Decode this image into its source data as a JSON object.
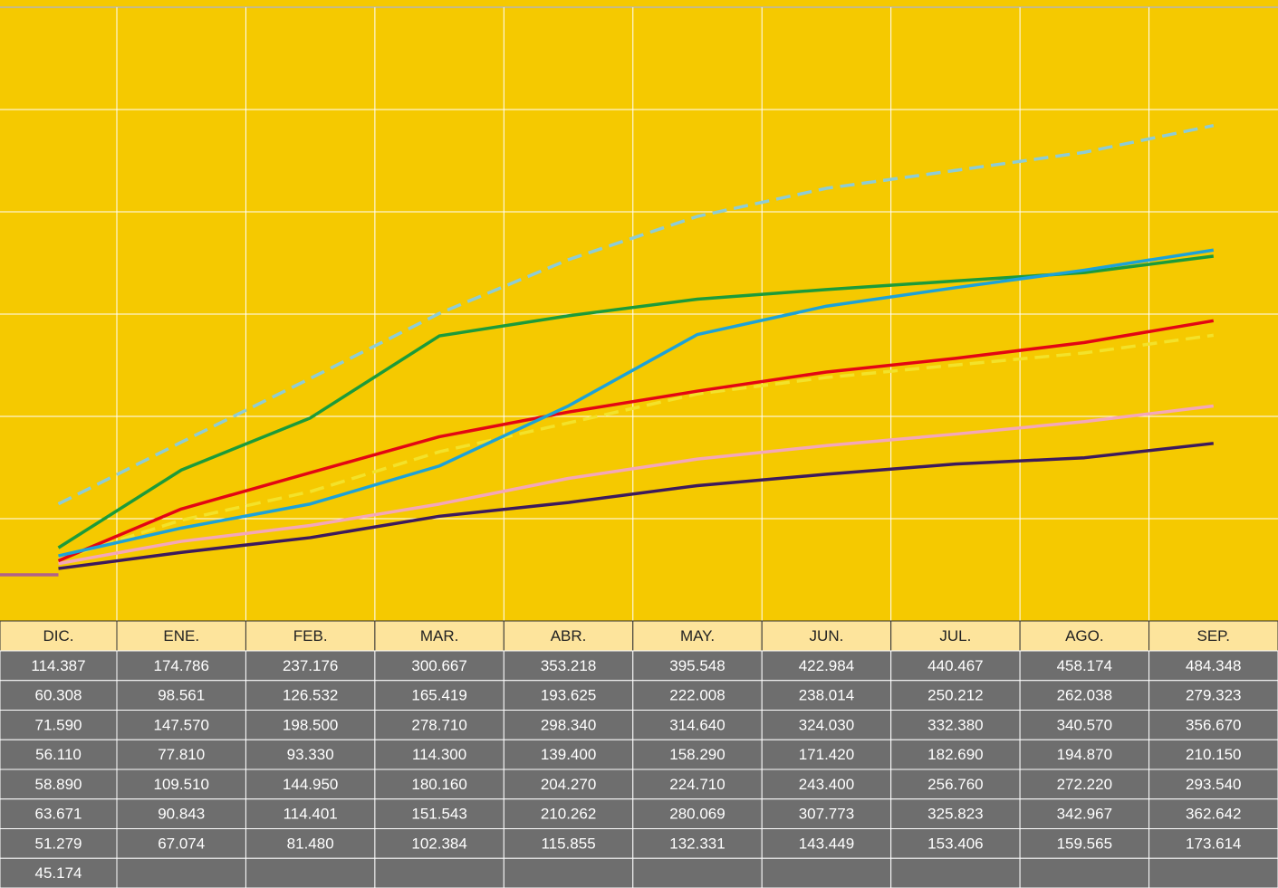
{
  "chart_data": {
    "type": "line",
    "categories": [
      "DIC.",
      "ENE.",
      "FEB.",
      "MAR.",
      "ABR.",
      "MAY.",
      "JUN.",
      "JUL.",
      "AGO.",
      "SEP."
    ],
    "ylim": [
      0,
      600000
    ],
    "yticks": [
      0,
      100000,
      200000,
      300000,
      400000,
      500000,
      600000
    ],
    "grid": true,
    "series": [
      {
        "color": "#8dccd6",
        "dash": true,
        "values": [
          114387,
          174786,
          237176,
          300667,
          353218,
          395548,
          422984,
          440467,
          458174,
          484348
        ],
        "value_labels": [
          "114.387",
          "174.786",
          "237.176",
          "300.667",
          "353.218",
          "395.548",
          "422.984",
          "440.467",
          "458.174",
          "484.348"
        ]
      },
      {
        "color": "#f3e22a",
        "dash": true,
        "values": [
          60308,
          98561,
          126532,
          165419,
          193625,
          222008,
          238014,
          250212,
          262038,
          279323
        ],
        "value_labels": [
          "60.308",
          "98.561",
          "126.532",
          "165.419",
          "193.625",
          "222.008",
          "238.014",
          "250.212",
          "262.038",
          "279.323"
        ]
      },
      {
        "color": "#1c9b3a",
        "dash": false,
        "values": [
          71590,
          147570,
          198500,
          278710,
          298340,
          314640,
          324030,
          332380,
          340570,
          356670
        ],
        "value_labels": [
          "71.590",
          "147.570",
          "198.500",
          "278.710",
          "298.340",
          "314.640",
          "324.030",
          "332.380",
          "340.570",
          "356.670"
        ]
      },
      {
        "color": "#f4a7b9",
        "dash": false,
        "values": [
          56110,
          77810,
          93330,
          114300,
          139400,
          158290,
          171420,
          182690,
          194870,
          210150
        ],
        "value_labels": [
          "56.110",
          "77.810",
          "93.330",
          "114.300",
          "139.400",
          "158.290",
          "171.420",
          "182.690",
          "194.870",
          "210.150"
        ]
      },
      {
        "color": "#e30613",
        "dash": false,
        "values": [
          58890,
          109510,
          144950,
          180160,
          204270,
          224710,
          243400,
          256760,
          272220,
          293540
        ],
        "value_labels": [
          "58.890",
          "109.510",
          "144.950",
          "180.160",
          "204.270",
          "224.710",
          "243.400",
          "256.760",
          "272.220",
          "293.540"
        ]
      },
      {
        "color": "#1da2d8",
        "dash": false,
        "values": [
          63671,
          90843,
          114401,
          151543,
          210262,
          280069,
          307773,
          325823,
          342967,
          362642
        ],
        "value_labels": [
          "63.671",
          "90.843",
          "114.401",
          "151.543",
          "210.262",
          "280.069",
          "307.773",
          "325.823",
          "342.967",
          "362.642"
        ]
      },
      {
        "color": "#3d1a5c",
        "dash": false,
        "values": [
          51279,
          67074,
          81480,
          102384,
          115855,
          132331,
          143449,
          153406,
          159565,
          173614
        ],
        "value_labels": [
          "51.279",
          "67.074",
          "81.480",
          "102.384",
          "115.855",
          "132.331",
          "143.449",
          "153.406",
          "159.565",
          "173.614"
        ]
      },
      {
        "color": "#b0618a",
        "dash": false,
        "values": [
          45174,
          null,
          null,
          null,
          null,
          null,
          null,
          null,
          null,
          null
        ],
        "value_labels": [
          "45.174",
          null,
          null,
          null,
          null,
          null,
          null,
          null,
          null,
          null
        ]
      }
    ]
  }
}
